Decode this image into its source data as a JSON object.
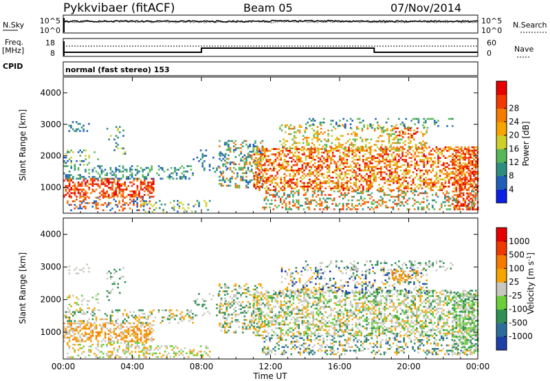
{
  "header": {
    "station": "Pykkvibaer (fitACF)",
    "beam": "Beam 05",
    "date": "07/Nov/2014"
  },
  "noise_panel": {
    "left_label": "N.Sky",
    "left_ticks": [
      "10^5",
      "10^0"
    ],
    "right_ticks": [
      "10^5",
      "10^0"
    ],
    "right_label": "N.Search"
  },
  "freq_panel": {
    "left_label_1": "Freq.",
    "left_label_2": "[MHz]",
    "left_ticks": [
      "18",
      "8"
    ],
    "right_ticks": [
      "60",
      "0"
    ],
    "right_label": "Nave"
  },
  "cpid": {
    "label": "CPID",
    "value": "normal (fast stereo) 153"
  },
  "chart_data": [
    {
      "type": "heatmap",
      "name": "power",
      "ylabel": "Slant Range [km]",
      "xlabel": "",
      "x_ticks": [
        "00:00",
        "04:00",
        "08:00",
        "12:00",
        "16:00",
        "20:00",
        "00:00"
      ],
      "y_ticks": [
        "1000",
        "2000",
        "3000",
        "4000"
      ],
      "xlim_hours": [
        0,
        24
      ],
      "ylim_km": [
        180,
        4500
      ],
      "colorbar": {
        "label": "Power [dB]",
        "ticks": [
          "4",
          "8",
          "12",
          "16",
          "20",
          "24",
          "28"
        ],
        "colors": [
          "#0a1ee6",
          "#1f5fb8",
          "#2f8d80",
          "#58b858",
          "#cfcf2a",
          "#f5a400",
          "#f57a00",
          "#f23a00",
          "#e60000"
        ]
      }
    },
    {
      "type": "heatmap",
      "name": "velocity",
      "ylabel": "Slant Range [km]",
      "xlabel": "Time UT",
      "x_ticks": [
        "00:00",
        "04:00",
        "08:00",
        "12:00",
        "16:00",
        "20:00",
        "00:00"
      ],
      "y_ticks": [
        "1000",
        "2000",
        "3000",
        "4000"
      ],
      "xlim_hours": [
        0,
        24
      ],
      "ylim_km": [
        180,
        4500
      ],
      "colorbar": {
        "label": "Velocity [m s",
        "label_sup": "-1",
        "label_end": "]",
        "ticks": [
          "1000",
          "500",
          "100",
          "25",
          "-25",
          "-100",
          "-500",
          "-1000"
        ],
        "colors": [
          "#1f3fa8",
          "#2c6d9c",
          "#2f8f55",
          "#6bcf3a",
          "#c8c8c0",
          "#f5a400",
          "#f57a00",
          "#ee3a00",
          "#e60000"
        ]
      }
    }
  ]
}
